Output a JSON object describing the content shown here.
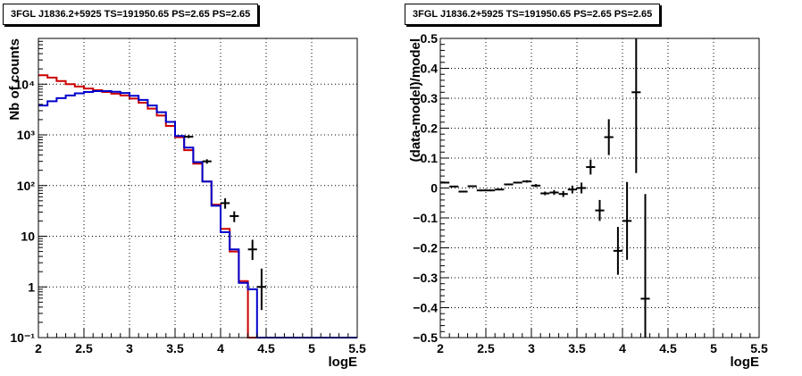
{
  "chart_data": [
    {
      "type": "histogram",
      "title": "3FGL J1836.2+5925 TS=191950.65 PS=2.65 PS=2.65",
      "xlabel": "logE",
      "ylabel": "Nb of counts",
      "xlim": [
        2,
        5.5
      ],
      "ylim": [
        0.1,
        80000
      ],
      "ylog": true,
      "grid": true,
      "xticks": [
        "2",
        "2.5",
        "3",
        "3.5",
        "4",
        "4.5",
        "5",
        "5.5"
      ],
      "yticks": [
        {
          "value": 0.1,
          "label": "10⁻¹"
        },
        {
          "value": 1,
          "label": "1"
        },
        {
          "value": 10,
          "label": "10"
        },
        {
          "value": 100,
          "label": "10²"
        },
        {
          "value": 1000,
          "label": "10³"
        },
        {
          "value": 10000,
          "label": "10⁴"
        }
      ],
      "bin_edges": [
        2.0,
        2.1,
        2.2,
        2.3,
        2.4,
        2.5,
        2.6,
        2.7,
        2.8,
        2.9,
        3.0,
        3.1,
        3.2,
        3.3,
        3.4,
        3.5,
        3.6,
        3.7,
        3.8,
        3.9,
        4.0,
        4.1,
        4.2,
        4.3,
        4.4,
        4.5,
        4.6,
        4.7,
        4.8,
        4.9,
        5.0,
        5.1,
        5.2,
        5.3,
        5.4,
        5.5
      ],
      "series": [
        {
          "color": "#cc0000",
          "style": "step",
          "values": [
            15000,
            13500,
            11500,
            10000,
            9000,
            8200,
            7600,
            7000,
            6500,
            6000,
            5200,
            4300,
            3300,
            2400,
            1500,
            900,
            500,
            270,
            120,
            42,
            14,
            5,
            1.3,
            0.1,
            0.1,
            0.1,
            0.1,
            0.1,
            0.1,
            0.1,
            0.1,
            0.1,
            0.1,
            0.1,
            0.1
          ]
        },
        {
          "color": "#0000cc",
          "style": "step",
          "values": [
            3800,
            4600,
            5300,
            6000,
            6600,
            7000,
            7300,
            7300,
            7100,
            6700,
            5900,
            4900,
            3800,
            2800,
            1800,
            950,
            560,
            290,
            120,
            40,
            12,
            5.5,
            1.2,
            0.9,
            0.1,
            0.1,
            0.1,
            0.1,
            0.1,
            0.1,
            0.1,
            0.1,
            0.1,
            0.1,
            0.1
          ]
        },
        {
          "color": "#000000",
          "style": "errorbar",
          "points": [
            {
              "x": 3.65,
              "y": 920,
              "lo": 860,
              "hi": 980
            },
            {
              "x": 3.85,
              "y": 300,
              "lo": 270,
              "hi": 330
            },
            {
              "x": 4.05,
              "y": 45,
              "lo": 35,
              "hi": 56
            },
            {
              "x": 4.15,
              "y": 25,
              "lo": 19,
              "hi": 31
            },
            {
              "x": 4.35,
              "y": 5.5,
              "lo": 3.4,
              "hi": 8.5
            },
            {
              "x": 4.45,
              "y": 1,
              "lo": 0.35,
              "hi": 2.3
            }
          ]
        }
      ]
    },
    {
      "type": "scatter",
      "title": "3FGL J1836.2+5925 TS=191950.65 PS=2.65 PS=2.65",
      "xlabel": "logE",
      "ylabel": "(data-model)/model",
      "xlim": [
        2,
        5.5
      ],
      "ylim": [
        -0.5,
        0.5
      ],
      "grid": true,
      "xticks": [
        "2",
        "2.5",
        "3",
        "3.5",
        "4",
        "4.5",
        "5",
        "5.5"
      ],
      "yticks": [
        "−0.5",
        "−0.4",
        "−0.3",
        "−0.2",
        "−0.1",
        "0",
        "0.1",
        "0.2",
        "0.3",
        "0.4",
        "0.5"
      ],
      "series": [
        {
          "color": "#000000",
          "points": [
            {
              "x": 2.05,
              "y": 0.018,
              "err": 0.002
            },
            {
              "x": 2.15,
              "y": 0.005,
              "err": 0.002
            },
            {
              "x": 2.25,
              "y": -0.012,
              "err": 0.003
            },
            {
              "x": 2.35,
              "y": 0.006,
              "err": 0.003
            },
            {
              "x": 2.45,
              "y": -0.008,
              "err": 0.003
            },
            {
              "x": 2.55,
              "y": -0.008,
              "err": 0.003
            },
            {
              "x": 2.65,
              "y": -0.005,
              "err": 0.003
            },
            {
              "x": 2.75,
              "y": 0.012,
              "err": 0.003
            },
            {
              "x": 2.85,
              "y": 0.018,
              "err": 0.003
            },
            {
              "x": 2.95,
              "y": 0.022,
              "err": 0.004
            },
            {
              "x": 3.05,
              "y": 0.008,
              "err": 0.005
            },
            {
              "x": 3.15,
              "y": -0.018,
              "err": 0.006
            },
            {
              "x": 3.25,
              "y": -0.015,
              "err": 0.008
            },
            {
              "x": 3.35,
              "y": -0.02,
              "err": 0.01
            },
            {
              "x": 3.45,
              "y": -0.005,
              "err": 0.013
            },
            {
              "x": 3.55,
              "y": 0.0,
              "err": 0.018
            },
            {
              "x": 3.65,
              "y": 0.07,
              "err": 0.025
            },
            {
              "x": 3.75,
              "y": -0.075,
              "err": 0.035
            },
            {
              "x": 3.85,
              "y": 0.17,
              "err": 0.06
            },
            {
              "x": 3.95,
              "y": -0.21,
              "err": 0.08
            },
            {
              "x": 4.05,
              "y": -0.11,
              "err": 0.13
            },
            {
              "x": 4.15,
              "y": 0.32,
              "err": 0.27
            },
            {
              "x": 4.25,
              "y": -0.37,
              "err": 0.35
            }
          ]
        }
      ]
    }
  ]
}
